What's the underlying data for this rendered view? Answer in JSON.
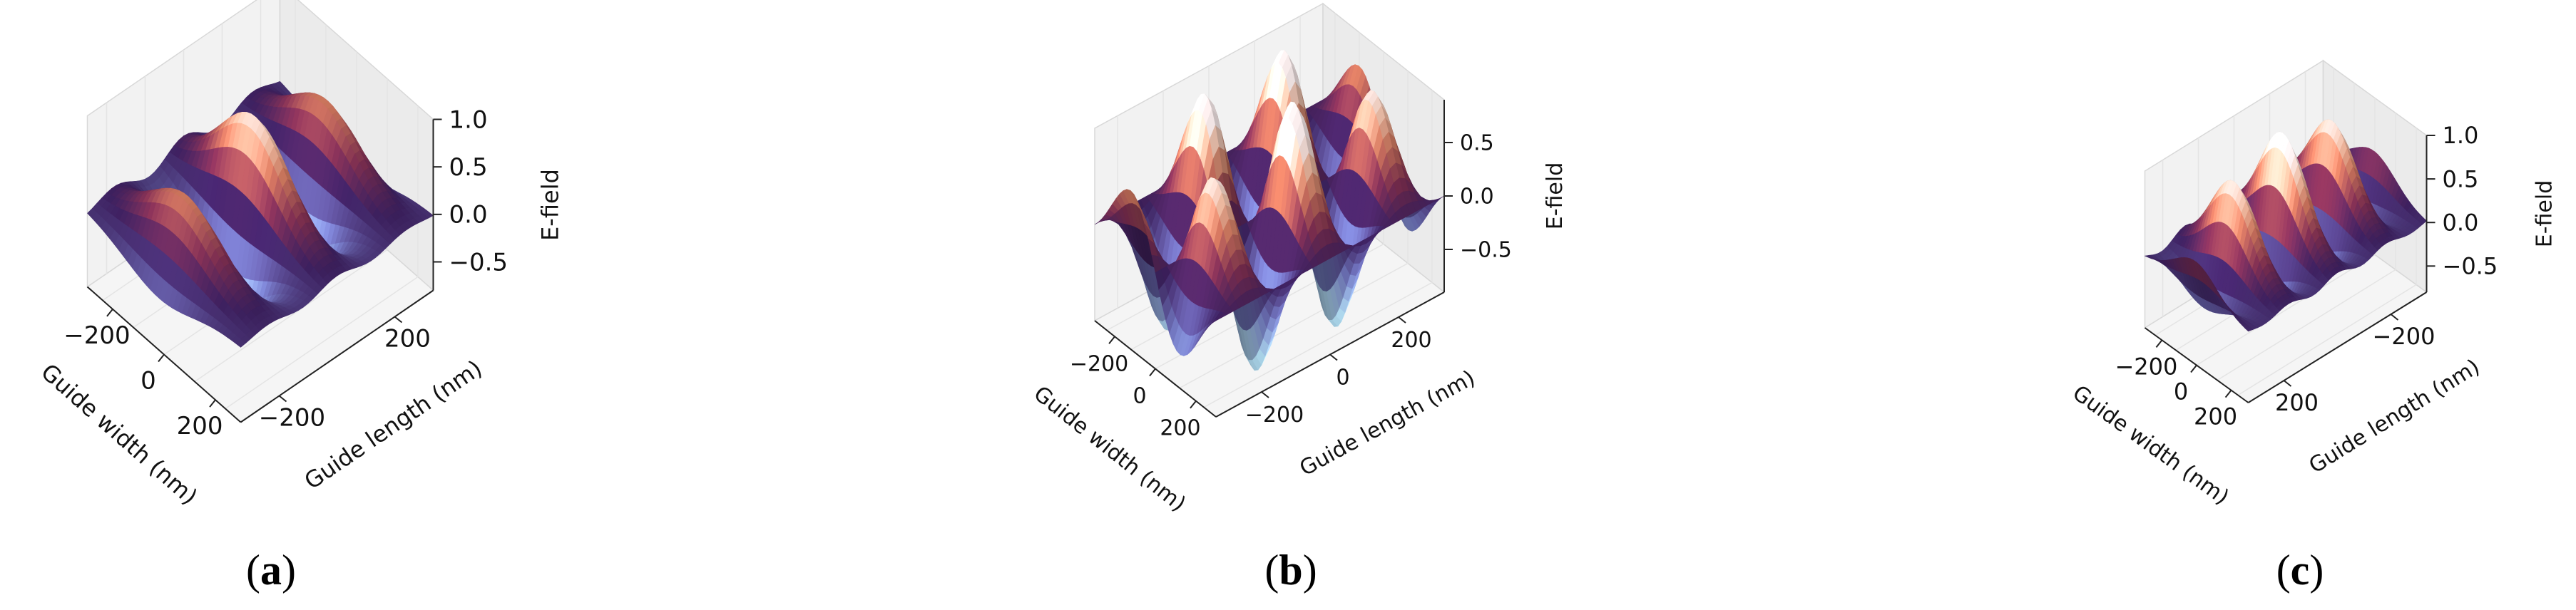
{
  "chart_data": [
    {
      "type": "surface3d",
      "panel": "a",
      "x_label": "Guide width (nm)",
      "y_label": "Guide length (nm)",
      "z_label": "E-field",
      "x_ticks": [
        "−200",
        "0",
        "200"
      ],
      "y_ticks": [
        "−200",
        "200"
      ],
      "z_ticks": [
        "1.0",
        "0.5",
        "0.0",
        "−0.5"
      ],
      "z_range": [
        -0.8,
        1.0
      ],
      "x_range": [
        -300,
        300
      ],
      "y_range": [
        -300,
        300
      ],
      "lobes_y": 3,
      "envelope_x": 1
    },
    {
      "type": "surface3d",
      "panel": "b",
      "x_label": "Guide width (nm)",
      "y_label": "Guide length (nm)",
      "z_label": "E-field",
      "x_ticks": [
        "−200",
        "0",
        "200"
      ],
      "y_ticks": [
        "−200",
        "0",
        "200"
      ],
      "z_ticks": [
        "0.5",
        "0.0",
        "−0.5"
      ],
      "z_range": [
        -0.9,
        0.9
      ],
      "x_range": [
        -300,
        300
      ],
      "y_range": [
        -300,
        300
      ],
      "lobes_y": 3,
      "envelope_x": 2
    },
    {
      "type": "surface3d",
      "panel": "c",
      "x_label": "Guide width (nm)",
      "y_label": "Guide length (nm)",
      "z_label": "E-field",
      "x_ticks": [
        "−200",
        "0",
        "200"
      ],
      "y_ticks": [
        "200",
        "−200"
      ],
      "z_ticks": [
        "1.0",
        "0.5",
        "0.0",
        "−0.5"
      ],
      "z_range": [
        -0.8,
        1.0
      ],
      "x_range": [
        -300,
        300
      ],
      "y_range": [
        -300,
        300
      ],
      "lobes_y": 4,
      "envelope_x": 1
    }
  ],
  "labels": {
    "a": {
      "open": "(",
      "letter": "a",
      "close": ")"
    },
    "b": {
      "open": "(",
      "letter": "b",
      "close": ")"
    },
    "c": {
      "open": "(",
      "letter": "c",
      "close": ")"
    }
  },
  "colors": {
    "pane": "#f2f2f2",
    "pane_edge": "#d8d8d8",
    "grid": "#e4e4e4",
    "axis": "#222222",
    "surface_low": "#a9d3e8",
    "surface_mid": "#4a2a6e",
    "surface_high": "#f3e6e6"
  }
}
